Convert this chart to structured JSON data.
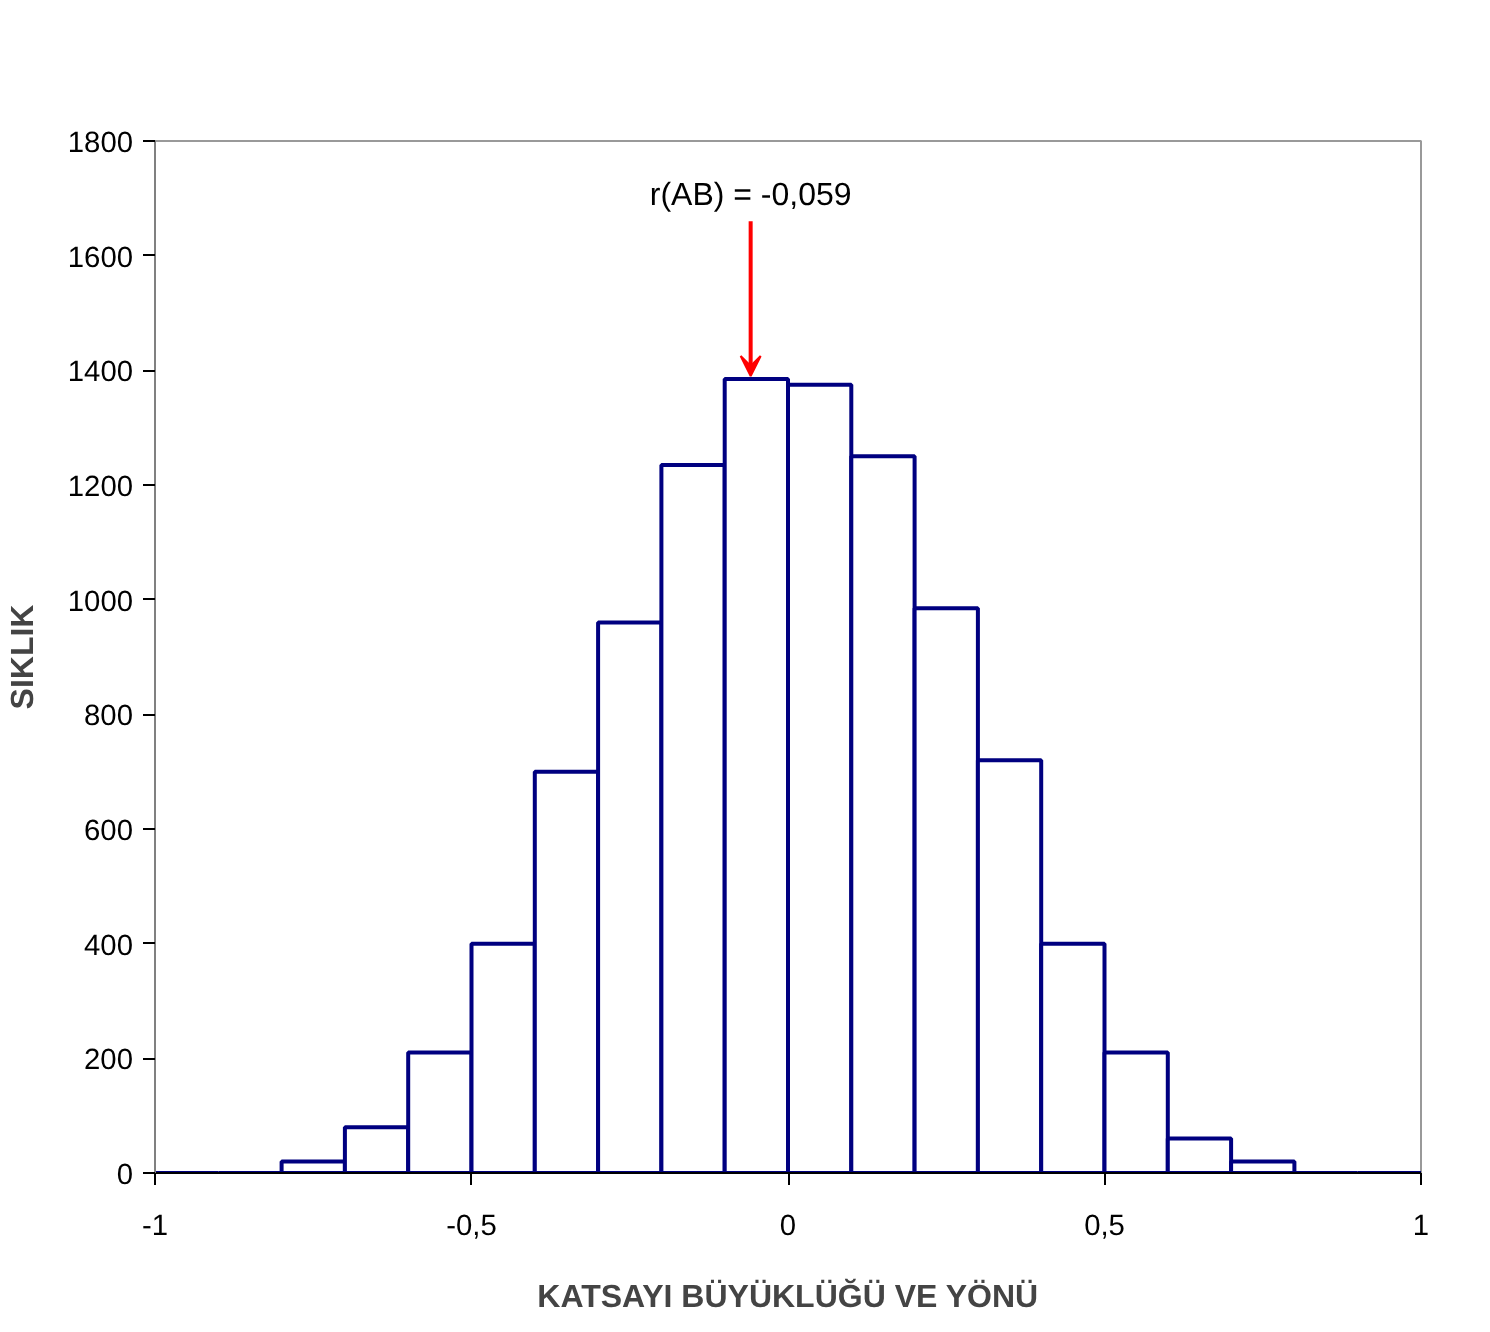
{
  "chart_data": {
    "type": "histogram",
    "xlabel": "KATSAYI BÜYÜKLÜĞÜ VE YÖNÜ",
    "ylabel": "SIKLIK",
    "bins": [
      -1,
      -0.9,
      -0.8,
      -0.7,
      -0.6,
      -0.5,
      -0.4,
      -0.3,
      -0.2,
      -0.1,
      0,
      0.1,
      0.2,
      0.3,
      0.4,
      0.5,
      0.6,
      0.7,
      0.8,
      0.9,
      1
    ],
    "values": [
      0,
      0,
      20,
      80,
      210,
      400,
      700,
      960,
      1235,
      1385,
      1375,
      1250,
      985,
      720,
      400,
      210,
      60,
      20,
      0,
      0
    ],
    "color": "#000080",
    "xlim": [
      -1,
      1
    ],
    "ylim": [
      0,
      1800
    ],
    "xticks": [
      {
        "value": -1,
        "label": "-1"
      },
      {
        "value": -0.5,
        "label": "-0,5"
      },
      {
        "value": 0,
        "label": "0"
      },
      {
        "value": 0.5,
        "label": "0,5"
      },
      {
        "value": 1,
        "label": "1"
      }
    ],
    "yticks": [
      0,
      200,
      400,
      600,
      800,
      1000,
      1200,
      1400,
      1600,
      1800
    ],
    "annotations": [
      {
        "text": "r(AB) = -0,059",
        "x": -0.059,
        "y": 1390
      }
    ],
    "grid": false
  }
}
